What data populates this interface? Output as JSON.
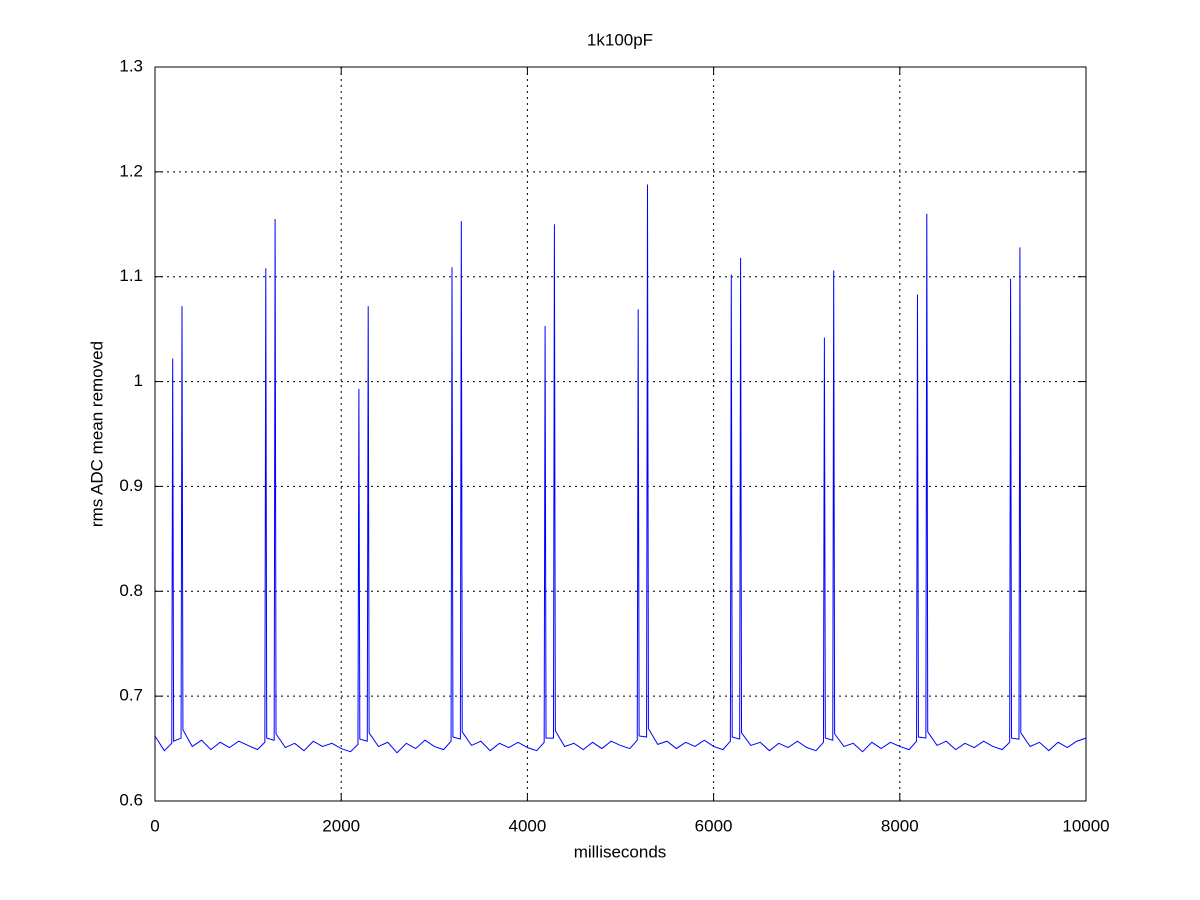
{
  "chart_data": {
    "type": "line",
    "title": "1k100pF",
    "x_label": "milliseconds",
    "y_label": "rms ADC mean removed",
    "color": "#0000ff",
    "grid": true,
    "xlim": [
      0,
      10000
    ],
    "xticks": [
      0,
      2000,
      4000,
      6000,
      8000,
      10000
    ],
    "ylim": [
      0.6,
      1.3
    ],
    "yticks": [
      0.6,
      0.7,
      0.8,
      0.9,
      1,
      1.1,
      1.2,
      1.3
    ],
    "x": [
      0,
      100,
      180,
      190,
      200,
      280,
      290,
      300,
      400,
      500,
      600,
      700,
      800,
      900,
      1000,
      1100,
      1180,
      1190,
      1200,
      1280,
      1290,
      1300,
      1400,
      1500,
      1600,
      1700,
      1800,
      1900,
      2000,
      2100,
      2180,
      2190,
      2200,
      2280,
      2290,
      2300,
      2400,
      2500,
      2600,
      2700,
      2800,
      2900,
      3000,
      3100,
      3180,
      3190,
      3200,
      3280,
      3290,
      3300,
      3400,
      3500,
      3600,
      3700,
      3800,
      3900,
      4000,
      4100,
      4180,
      4190,
      4200,
      4280,
      4290,
      4300,
      4400,
      4500,
      4600,
      4700,
      4800,
      4900,
      5000,
      5100,
      5180,
      5190,
      5200,
      5280,
      5290,
      5300,
      5400,
      5500,
      5600,
      5700,
      5800,
      5900,
      6000,
      6100,
      6180,
      6190,
      6200,
      6280,
      6290,
      6300,
      6400,
      6500,
      6600,
      6700,
      6800,
      6900,
      7000,
      7100,
      7180,
      7190,
      7200,
      7280,
      7290,
      7300,
      7400,
      7500,
      7600,
      7700,
      7800,
      7900,
      8000,
      8100,
      8180,
      8190,
      8200,
      8280,
      8290,
      8300,
      8400,
      8500,
      8600,
      8700,
      8800,
      8900,
      9000,
      9100,
      9180,
      9190,
      9200,
      9280,
      9290,
      9300,
      9400,
      9500,
      9600,
      9700,
      9800,
      9900,
      10000
    ],
    "values": [
      0.662,
      0.648,
      0.655,
      1.022,
      0.657,
      0.66,
      1.072,
      0.668,
      0.652,
      0.658,
      0.649,
      0.656,
      0.651,
      0.657,
      0.653,
      0.649,
      0.656,
      1.108,
      0.66,
      0.658,
      1.155,
      0.664,
      0.651,
      0.655,
      0.648,
      0.657,
      0.652,
      0.655,
      0.65,
      0.647,
      0.654,
      0.993,
      0.659,
      0.657,
      1.072,
      0.665,
      0.652,
      0.656,
      0.646,
      0.655,
      0.65,
      0.658,
      0.652,
      0.649,
      0.657,
      1.109,
      0.661,
      0.659,
      1.153,
      0.666,
      0.653,
      0.657,
      0.648,
      0.655,
      0.651,
      0.656,
      0.651,
      0.648,
      0.656,
      1.053,
      0.66,
      0.66,
      1.15,
      0.667,
      0.652,
      0.655,
      0.649,
      0.656,
      0.65,
      0.657,
      0.653,
      0.65,
      0.658,
      1.069,
      0.662,
      0.661,
      1.188,
      0.669,
      0.654,
      0.657,
      0.65,
      0.656,
      0.652,
      0.658,
      0.652,
      0.649,
      0.657,
      1.102,
      0.661,
      0.659,
      1.118,
      0.665,
      0.653,
      0.656,
      0.648,
      0.655,
      0.651,
      0.657,
      0.651,
      0.648,
      0.656,
      1.042,
      0.66,
      0.658,
      1.106,
      0.664,
      0.652,
      0.655,
      0.647,
      0.656,
      0.65,
      0.656,
      0.652,
      0.649,
      0.657,
      1.083,
      0.661,
      0.66,
      1.16,
      0.666,
      0.653,
      0.657,
      0.649,
      0.655,
      0.651,
      0.657,
      0.652,
      0.649,
      0.656,
      1.098,
      0.66,
      0.659,
      1.128,
      0.665,
      0.652,
      0.656,
      0.648,
      0.656,
      0.651,
      0.657,
      0.66
    ]
  }
}
